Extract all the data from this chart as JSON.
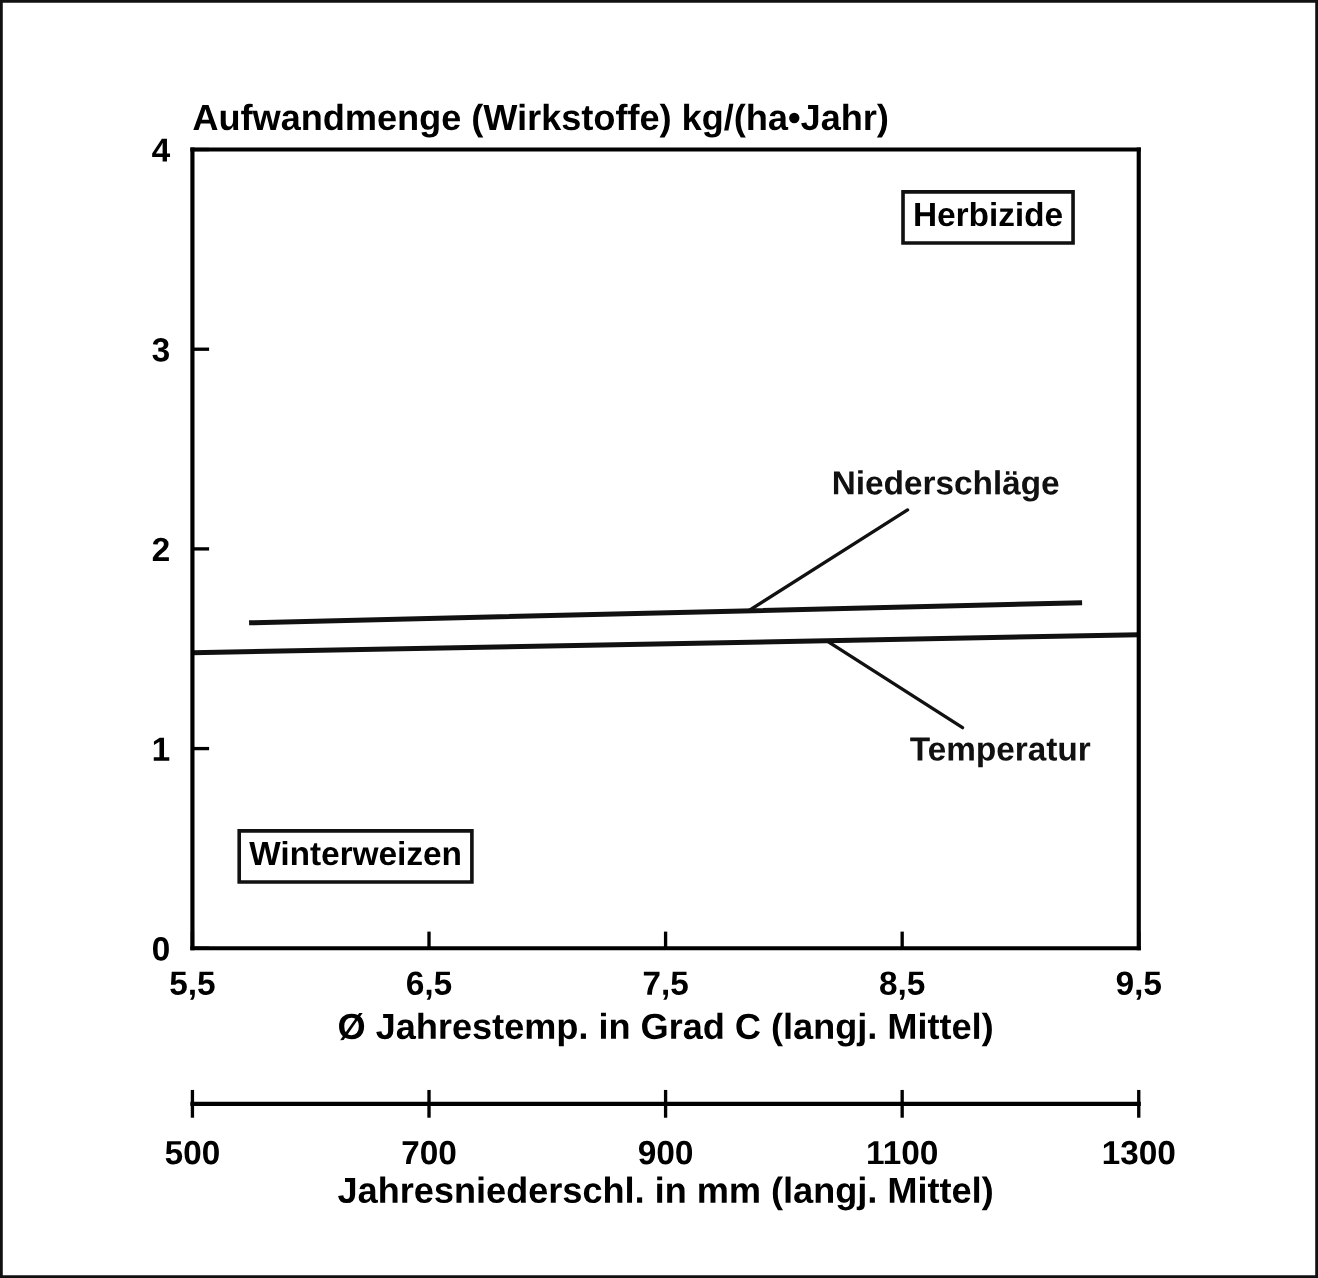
{
  "chart_data": {
    "type": "line",
    "ylabel": "Aufwandmenge (Wirkstoffe) kg/(ha•Jahr)",
    "xlabel": "Ø Jahrestemp. in Grad C (langj. Mittel)",
    "x2label": "Jahresniederschl. in mm (langj. Mittel)",
    "xlim": [
      5.5,
      9.5
    ],
    "xticks": [
      {
        "value": 5.5,
        "label": "5,5"
      },
      {
        "value": 6.5,
        "label": "6,5"
      },
      {
        "value": 7.5,
        "label": "7,5"
      },
      {
        "value": 8.5,
        "label": "8,5"
      },
      {
        "value": 9.5,
        "label": "9,5"
      }
    ],
    "x2lim": [
      500,
      1300
    ],
    "x2ticks": [
      500,
      700,
      900,
      1100,
      1300
    ],
    "ylim": [
      0,
      4
    ],
    "yticks": [
      0,
      1,
      2,
      3,
      4
    ],
    "grid": false,
    "legend": false,
    "marker": "none",
    "line_style": "solid",
    "series": [
      {
        "name": "Niederschläge",
        "color": "#111111",
        "axis": "x2",
        "x": [
          550,
          1250
        ],
        "values": [
          1.63,
          1.73
        ]
      },
      {
        "name": "Temperatur",
        "color": "#111111",
        "x": [
          5.5,
          9.5
        ],
        "values": [
          1.48,
          1.57
        ]
      }
    ],
    "annotations": [
      "Herbizide",
      "Winterweizen"
    ]
  }
}
